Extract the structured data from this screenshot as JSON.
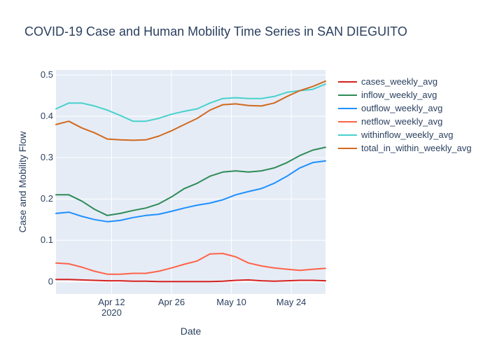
{
  "chart_data": {
    "type": "line",
    "title": "COVID-19 Case and Human Mobility Time Series in SAN DIEGUITO",
    "xlabel": "Date",
    "ylabel": "Case and Mobility Flow",
    "xlim": [
      "2020-03-30",
      "2020-06-01"
    ],
    "ylim": [
      -0.03,
      0.512
    ],
    "grid": true,
    "legend": "right",
    "x_ticks": [
      {
        "date": "2020-04-12",
        "label": "Apr 12",
        "sublabel": "2020"
      },
      {
        "date": "2020-04-26",
        "label": "Apr 26",
        "sublabel": ""
      },
      {
        "date": "2020-05-10",
        "label": "May 10",
        "sublabel": ""
      },
      {
        "date": "2020-05-24",
        "label": "May 24",
        "sublabel": ""
      }
    ],
    "y_ticks": [
      0,
      0.1,
      0.2,
      0.3,
      0.4,
      0.5
    ],
    "y_tick_labels": [
      "0",
      "0.1",
      "0.2",
      "0.3",
      "0.4",
      "0.5"
    ],
    "x": [
      "2020-03-30",
      "2020-04-02",
      "2020-04-05",
      "2020-04-08",
      "2020-04-11",
      "2020-04-14",
      "2020-04-17",
      "2020-04-20",
      "2020-04-23",
      "2020-04-26",
      "2020-04-29",
      "2020-05-02",
      "2020-05-05",
      "2020-05-08",
      "2020-05-11",
      "2020-05-14",
      "2020-05-17",
      "2020-05-20",
      "2020-05-23",
      "2020-05-26",
      "2020-05-29",
      "2020-06-01"
    ],
    "series": [
      {
        "name": "cases_weekly_avg",
        "color": "#d62020",
        "values": [
          0.005,
          0.005,
          0.004,
          0.003,
          0.002,
          0.002,
          0.001,
          0.001,
          0.0,
          0.0,
          0.0,
          0.0,
          0.0,
          0.001,
          0.003,
          0.004,
          0.002,
          0.001,
          0.002,
          0.003,
          0.003,
          0.002
        ]
      },
      {
        "name": "inflow_weekly_avg",
        "color": "#2e8b57",
        "values": [
          0.21,
          0.21,
          0.195,
          0.175,
          0.16,
          0.165,
          0.172,
          0.178,
          0.188,
          0.205,
          0.225,
          0.238,
          0.255,
          0.265,
          0.268,
          0.265,
          0.268,
          0.275,
          0.288,
          0.305,
          0.318,
          0.325
        ]
      },
      {
        "name": "outflow_weekly_avg",
        "color": "#1e90ff",
        "values": [
          0.165,
          0.168,
          0.158,
          0.15,
          0.145,
          0.148,
          0.155,
          0.16,
          0.163,
          0.17,
          0.178,
          0.185,
          0.19,
          0.198,
          0.21,
          0.218,
          0.225,
          0.238,
          0.255,
          0.275,
          0.288,
          0.292
        ]
      },
      {
        "name": "netflow_weekly_avg",
        "color": "#ff6347",
        "values": [
          0.045,
          0.043,
          0.035,
          0.025,
          0.018,
          0.018,
          0.02,
          0.02,
          0.025,
          0.033,
          0.042,
          0.05,
          0.067,
          0.068,
          0.06,
          0.045,
          0.038,
          0.033,
          0.03,
          0.027,
          0.03,
          0.032
        ]
      },
      {
        "name": "withinflow_weekly_avg",
        "color": "#48d1cc",
        "values": [
          0.418,
          0.432,
          0.432,
          0.425,
          0.415,
          0.402,
          0.388,
          0.388,
          0.395,
          0.405,
          0.412,
          0.418,
          0.432,
          0.443,
          0.445,
          0.443,
          0.443,
          0.448,
          0.458,
          0.462,
          0.465,
          0.478
        ]
      },
      {
        "name": "total_in_within_weekly_avg",
        "color": "#d2691e",
        "values": [
          0.38,
          0.388,
          0.372,
          0.36,
          0.345,
          0.343,
          0.342,
          0.343,
          0.352,
          0.365,
          0.38,
          0.395,
          0.415,
          0.428,
          0.43,
          0.426,
          0.425,
          0.432,
          0.448,
          0.462,
          0.472,
          0.485
        ]
      }
    ]
  }
}
